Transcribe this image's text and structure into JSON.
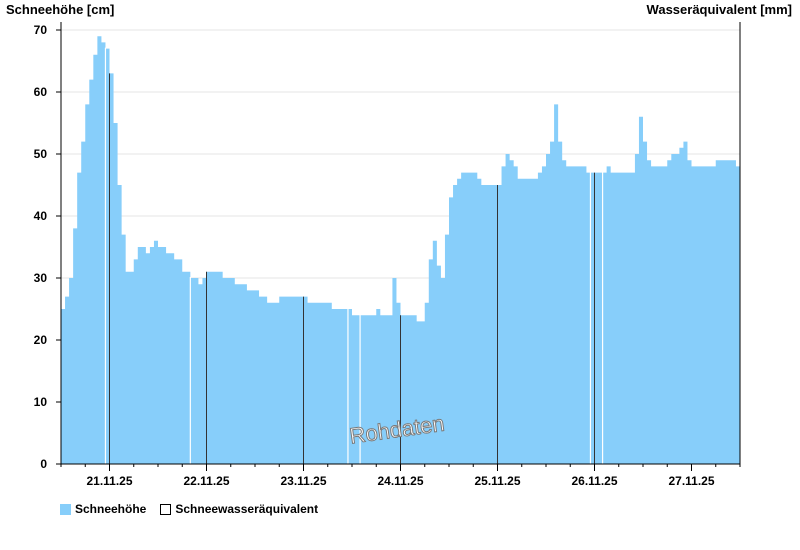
{
  "chart_data": {
    "type": "area",
    "ylabel": "Schneehöhe [cm]",
    "ylabel_right": "Wasseräquivalent [mm]",
    "ylim": [
      0,
      70
    ],
    "yticks": [
      0,
      10,
      20,
      30,
      40,
      50,
      60,
      70
    ],
    "x_start": "20.11.25 12:00",
    "x_end": "27.11.25 12:00",
    "xtick_labels": [
      "21.11.25",
      "22.11.25",
      "23.11.25",
      "24.11.25",
      "25.11.25",
      "26.11.25",
      "27.11.25"
    ],
    "annotation": "Rohdaten",
    "colors": {
      "snow": "#87CEFA",
      "grid": "#e6e6e6",
      "daysep": "#333333"
    },
    "series": [
      {
        "name": "Schneehöhe",
        "hours": [
          0,
          1,
          2,
          3,
          4,
          5,
          6,
          7,
          8,
          9,
          10,
          11,
          12,
          13,
          14,
          15,
          16,
          17,
          18,
          19,
          20,
          21,
          22,
          23,
          24,
          25,
          26,
          27,
          28,
          29,
          30,
          31,
          32,
          33,
          34,
          35,
          36,
          37,
          38,
          39,
          40,
          41,
          42,
          43,
          44,
          45,
          46,
          47,
          48,
          49,
          50,
          51,
          52,
          53,
          54,
          55,
          56,
          57,
          58,
          59,
          60,
          61,
          62,
          63,
          64,
          65,
          66,
          67,
          68,
          69,
          70,
          71,
          72,
          73,
          74,
          75,
          76,
          77,
          78,
          79,
          80,
          81,
          82,
          83,
          84,
          85,
          86,
          87,
          88,
          89,
          90,
          91,
          92,
          93,
          94,
          95,
          96,
          97,
          98,
          99,
          100,
          101,
          102,
          103,
          104,
          105,
          106,
          107,
          108,
          109,
          110,
          111,
          112,
          113,
          114,
          115,
          116,
          117,
          118,
          119,
          120,
          121,
          122,
          123,
          124,
          125,
          126,
          127,
          128,
          129,
          130,
          131,
          132,
          133,
          134,
          135,
          136,
          137,
          138,
          139,
          140,
          141,
          142,
          143,
          144,
          145,
          146,
          147,
          148,
          149,
          150,
          151,
          152,
          153,
          154,
          155,
          156,
          157,
          158,
          159,
          160,
          161,
          162,
          163,
          164,
          165,
          166,
          167,
          168
        ],
        "values": [
          25,
          27,
          30,
          38,
          47,
          52,
          58,
          62,
          66,
          69,
          68,
          67,
          63,
          55,
          45,
          37,
          31,
          31,
          33,
          35,
          35,
          34,
          35,
          36,
          35,
          35,
          34,
          34,
          33,
          33,
          31,
          31,
          30,
          30,
          29,
          30,
          31,
          31,
          31,
          31,
          30,
          30,
          30,
          29,
          29,
          29,
          28,
          28,
          28,
          27,
          27,
          26,
          26,
          26,
          27,
          27,
          27,
          27,
          27,
          27,
          27,
          26,
          26,
          26,
          26,
          26,
          26,
          25,
          25,
          25,
          25,
          25,
          24,
          24,
          24,
          24,
          24,
          24,
          25,
          24,
          24,
          24,
          30,
          26,
          24,
          24,
          24,
          24,
          23,
          23,
          26,
          33,
          36,
          32,
          30,
          37,
          43,
          45,
          46,
          47,
          47,
          47,
          47,
          46,
          45,
          45,
          45,
          45,
          45,
          48,
          50,
          49,
          48,
          46,
          46,
          46,
          46,
          46,
          47,
          48,
          50,
          52,
          58,
          52,
          49,
          48,
          48,
          48,
          48,
          48,
          47,
          47,
          47,
          47,
          47,
          48,
          47,
          47,
          47,
          47,
          47,
          47,
          50,
          56,
          52,
          49,
          48,
          48,
          48,
          48,
          49,
          50,
          50,
          51,
          52,
          49,
          48,
          48,
          48,
          48,
          48,
          48,
          49,
          49,
          49,
          49,
          49,
          48,
          48
        ]
      },
      {
        "name": "Schneewasseräquivalent",
        "values": []
      }
    ],
    "gaps_hours": [
      11,
      32,
      71,
      74,
      131,
      134
    ]
  },
  "legend": {
    "snow_label": "Schneehöhe",
    "swe_label": "Schneewasseräquivalent"
  }
}
